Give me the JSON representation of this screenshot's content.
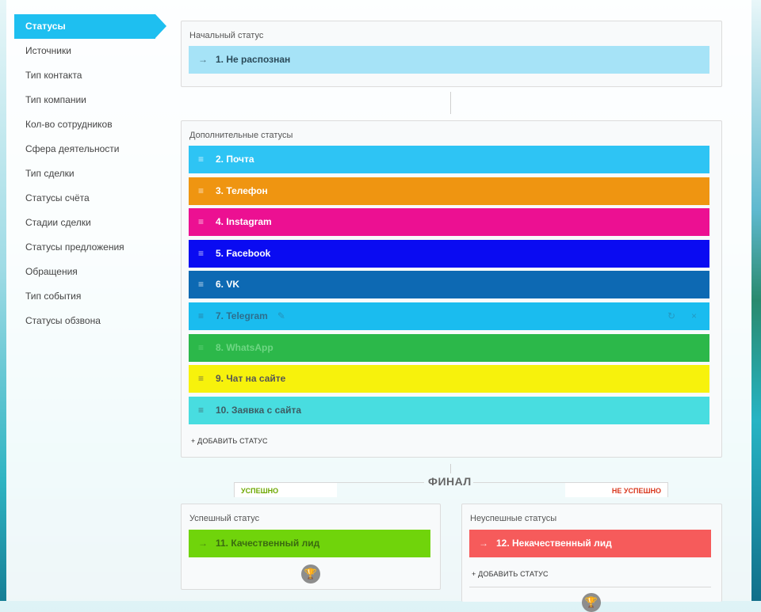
{
  "sidebar": {
    "items": [
      {
        "label": "Статусы",
        "active": true
      },
      {
        "label": "Источники"
      },
      {
        "label": "Тип контакта"
      },
      {
        "label": "Тип компании"
      },
      {
        "label": "Кол-во сотрудников"
      },
      {
        "label": "Сфера деятельности"
      },
      {
        "label": "Тип сделки"
      },
      {
        "label": "Статусы счёта"
      },
      {
        "label": "Стадии сделки"
      },
      {
        "label": "Статусы предложения"
      },
      {
        "label": "Обращения"
      },
      {
        "label": "Тип события"
      },
      {
        "label": "Статусы обзвона"
      }
    ]
  },
  "initial": {
    "title": "Начальный статус",
    "status": {
      "label": "1. Не распознан",
      "icon": "arrow-right-icon",
      "color": "#a6e3f7"
    }
  },
  "additional": {
    "title": "Дополнительные статусы",
    "statuses": [
      {
        "label": "2. Почта",
        "color": "#2ec4f4"
      },
      {
        "label": "3. Телефон",
        "color": "#ef9511"
      },
      {
        "label": "4. Instagram",
        "color": "#ec1092"
      },
      {
        "label": "5. Facebook",
        "color": "#0a0bf2"
      },
      {
        "label": "6. VK",
        "color": "#0d69b3"
      },
      {
        "label": "7. Telegram",
        "color": "#1abcef"
      },
      {
        "label": "8. WhatsApp",
        "color": "#2cb84a"
      },
      {
        "label": "9. Чат на сайте",
        "color": "#f7f20c"
      },
      {
        "label": "10. Заявка с сайта",
        "color": "#48dde0"
      }
    ],
    "add_label": "+ ДОБАВИТЬ СТАТУС"
  },
  "final": {
    "title": "ФИНАЛ",
    "success_tag": "УСПЕШНО",
    "fail_tag": "НЕ УСПЕШНО",
    "success_box": {
      "title": "Успешный статус",
      "status": {
        "label": "11. Качественный лид",
        "color": "#70d40b"
      }
    },
    "fail_box": {
      "title": "Неуспешные статусы",
      "status": {
        "label": "12. Некачественный лид",
        "color": "#f65b5b"
      },
      "add_label": "+ ДОБАВИТЬ СТАТУС"
    }
  },
  "glyphs": {
    "arrow": "→",
    "drag": "≡",
    "edit": "✎",
    "refresh": "↻",
    "close": "×",
    "trophy": "🏆"
  }
}
